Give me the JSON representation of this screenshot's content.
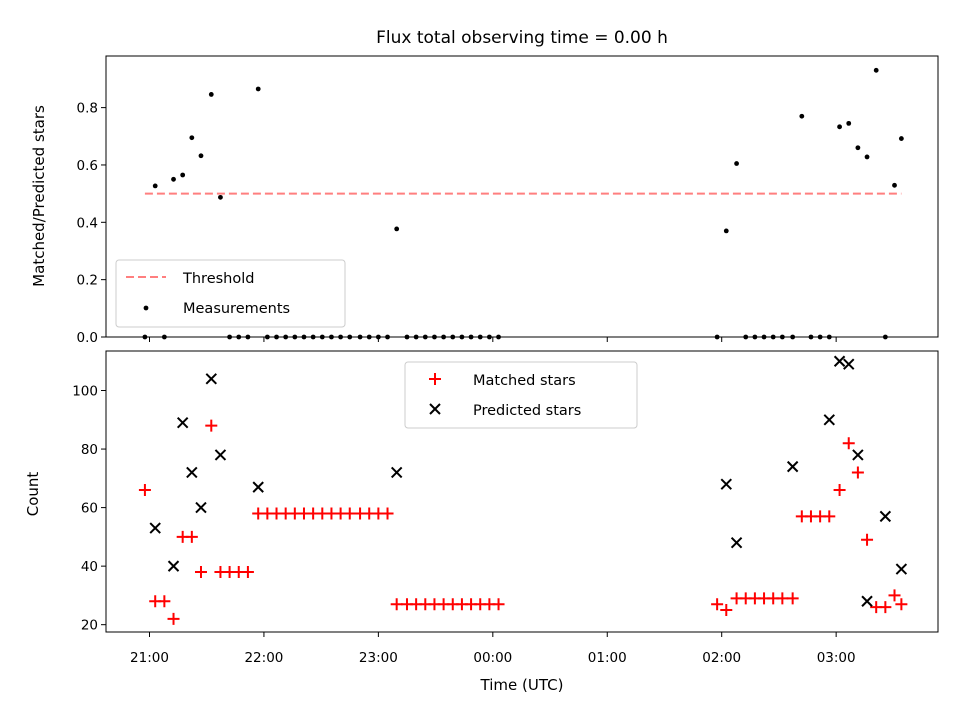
{
  "figure": {
    "title": "Flux total observing time = 0.00 h",
    "xlabel": "Time (UTC)"
  },
  "colors": {
    "threshold": "#ff7f7f",
    "measurements": "#000000",
    "matched": "#ff0000",
    "predicted": "#000000"
  },
  "chart_data": [
    {
      "type": "scatter",
      "ylabel": "Matched/Predicted stars",
      "x_unit": "hours since 21:00 UTC",
      "xlim": [
        -0.38,
        6.89
      ],
      "ylim": [
        0,
        0.98
      ],
      "yticks": [
        0,
        0.2,
        0.4,
        0.6,
        0.8
      ],
      "ytick_labels": [
        "0.0",
        "0.2",
        "0.4",
        "0.6",
        "0.8"
      ],
      "xticks": [
        0,
        1,
        2,
        3,
        4,
        5,
        6
      ],
      "xtick_labels": [
        "21:00",
        "22:00",
        "23:00",
        "00:00",
        "01:00",
        "02:00",
        "03:00"
      ],
      "legend": {
        "placement": "lower left",
        "entries": [
          "Threshold",
          "Measurements"
        ]
      },
      "series": [
        {
          "name": "Threshold",
          "style": "dashed-line",
          "x": [
            -0.04,
            6.57
          ],
          "y": [
            0.5,
            0.5
          ]
        },
        {
          "name": "Measurements",
          "style": "dot",
          "x": [
            -0.04,
            0.05,
            0.13,
            0.21,
            0.29,
            0.37,
            0.45,
            0.54,
            0.62,
            0.7,
            0.78,
            0.86,
            0.95,
            1.03,
            1.11,
            1.19,
            1.27,
            1.35,
            1.43,
            1.51,
            1.59,
            1.67,
            1.75,
            1.84,
            1.92,
            2.0,
            2.08,
            2.16,
            2.25,
            2.33,
            2.41,
            2.49,
            2.57,
            2.65,
            2.73,
            2.81,
            2.89,
            2.97,
            3.05,
            4.96,
            5.04,
            5.13,
            5.21,
            5.29,
            5.37,
            5.45,
            5.53,
            5.62,
            5.7,
            5.78,
            5.86,
            5.94,
            6.03,
            6.11,
            6.19,
            6.27,
            6.35,
            6.43,
            6.51,
            6.57
          ],
          "y": [
            0.0,
            0.527,
            0.0,
            0.55,
            0.565,
            0.695,
            0.632,
            0.846,
            0.487,
            0.0,
            0.0,
            0.0,
            0.865,
            0.0,
            0.0,
            0.0,
            0.0,
            0.0,
            0.0,
            0.0,
            0.0,
            0.0,
            0.0,
            0.0,
            0.0,
            0.0,
            0.0,
            0.377,
            0.0,
            0.0,
            0.0,
            0.0,
            0.0,
            0.0,
            0.0,
            0.0,
            0.0,
            0.0,
            0.0,
            0.0,
            0.37,
            0.605,
            0.0,
            0.0,
            0.0,
            0.0,
            0.0,
            0.0,
            0.77,
            0.0,
            0.0,
            0.0,
            0.733,
            0.745,
            0.66,
            0.628,
            0.93,
            0.0,
            0.529,
            0.692
          ]
        }
      ]
    },
    {
      "type": "scatter",
      "ylabel": "Count",
      "xlabel": "Time (UTC)",
      "x_unit": "hours since 21:00 UTC",
      "xlim": [
        -0.38,
        6.89
      ],
      "ylim": [
        17.5,
        113.5
      ],
      "yticks": [
        20,
        40,
        60,
        80,
        100
      ],
      "ytick_labels": [
        "20",
        "40",
        "60",
        "80",
        "100"
      ],
      "xticks": [
        0,
        1,
        2,
        3,
        4,
        5,
        6
      ],
      "xtick_labels": [
        "21:00",
        "22:00",
        "23:00",
        "00:00",
        "01:00",
        "02:00",
        "03:00"
      ],
      "legend": {
        "placement": "upper center",
        "entries": [
          "Matched stars",
          "Predicted stars"
        ]
      },
      "series": [
        {
          "name": "Matched stars",
          "marker": "plus",
          "x": [
            -0.04,
            0.05,
            0.13,
            0.21,
            0.29,
            0.37,
            0.45,
            0.54,
            0.62,
            0.7,
            0.78,
            0.86,
            0.95,
            1.03,
            1.11,
            1.19,
            1.27,
            1.35,
            1.43,
            1.51,
            1.59,
            1.67,
            1.75,
            1.84,
            1.92,
            2.0,
            2.08,
            2.16,
            2.25,
            2.33,
            2.41,
            2.49,
            2.57,
            2.65,
            2.73,
            2.81,
            2.89,
            2.97,
            3.05,
            4.96,
            5.04,
            5.13,
            5.21,
            5.29,
            5.37,
            5.45,
            5.53,
            5.62,
            5.7,
            5.78,
            5.86,
            5.94,
            6.03,
            6.11,
            6.19,
            6.27,
            6.35,
            6.43,
            6.51,
            6.57
          ],
          "y": [
            66,
            28,
            28,
            22,
            50,
            50,
            38,
            88,
            38,
            38,
            38,
            38,
            58,
            58,
            58,
            58,
            58,
            58,
            58,
            58,
            58,
            58,
            58,
            58,
            58,
            58,
            58,
            27,
            27,
            27,
            27,
            27,
            27,
            27,
            27,
            27,
            27,
            27,
            27,
            27,
            25,
            29,
            29,
            29,
            29,
            29,
            29,
            29,
            57,
            57,
            57,
            57,
            66,
            82,
            72,
            49,
            26,
            26,
            30,
            27
          ]
        },
        {
          "name": "Predicted stars",
          "marker": "x",
          "x": [
            0.05,
            0.21,
            0.29,
            0.37,
            0.45,
            0.54,
            0.62,
            0.95,
            2.16,
            5.04,
            5.13,
            5.62,
            5.94,
            6.03,
            6.11,
            6.19,
            6.27,
            6.43,
            6.57
          ],
          "y": [
            53,
            40,
            89,
            72,
            60,
            104,
            78,
            67,
            72,
            68,
            48,
            74,
            90,
            110,
            109,
            78,
            28,
            57,
            39
          ]
        }
      ]
    }
  ]
}
